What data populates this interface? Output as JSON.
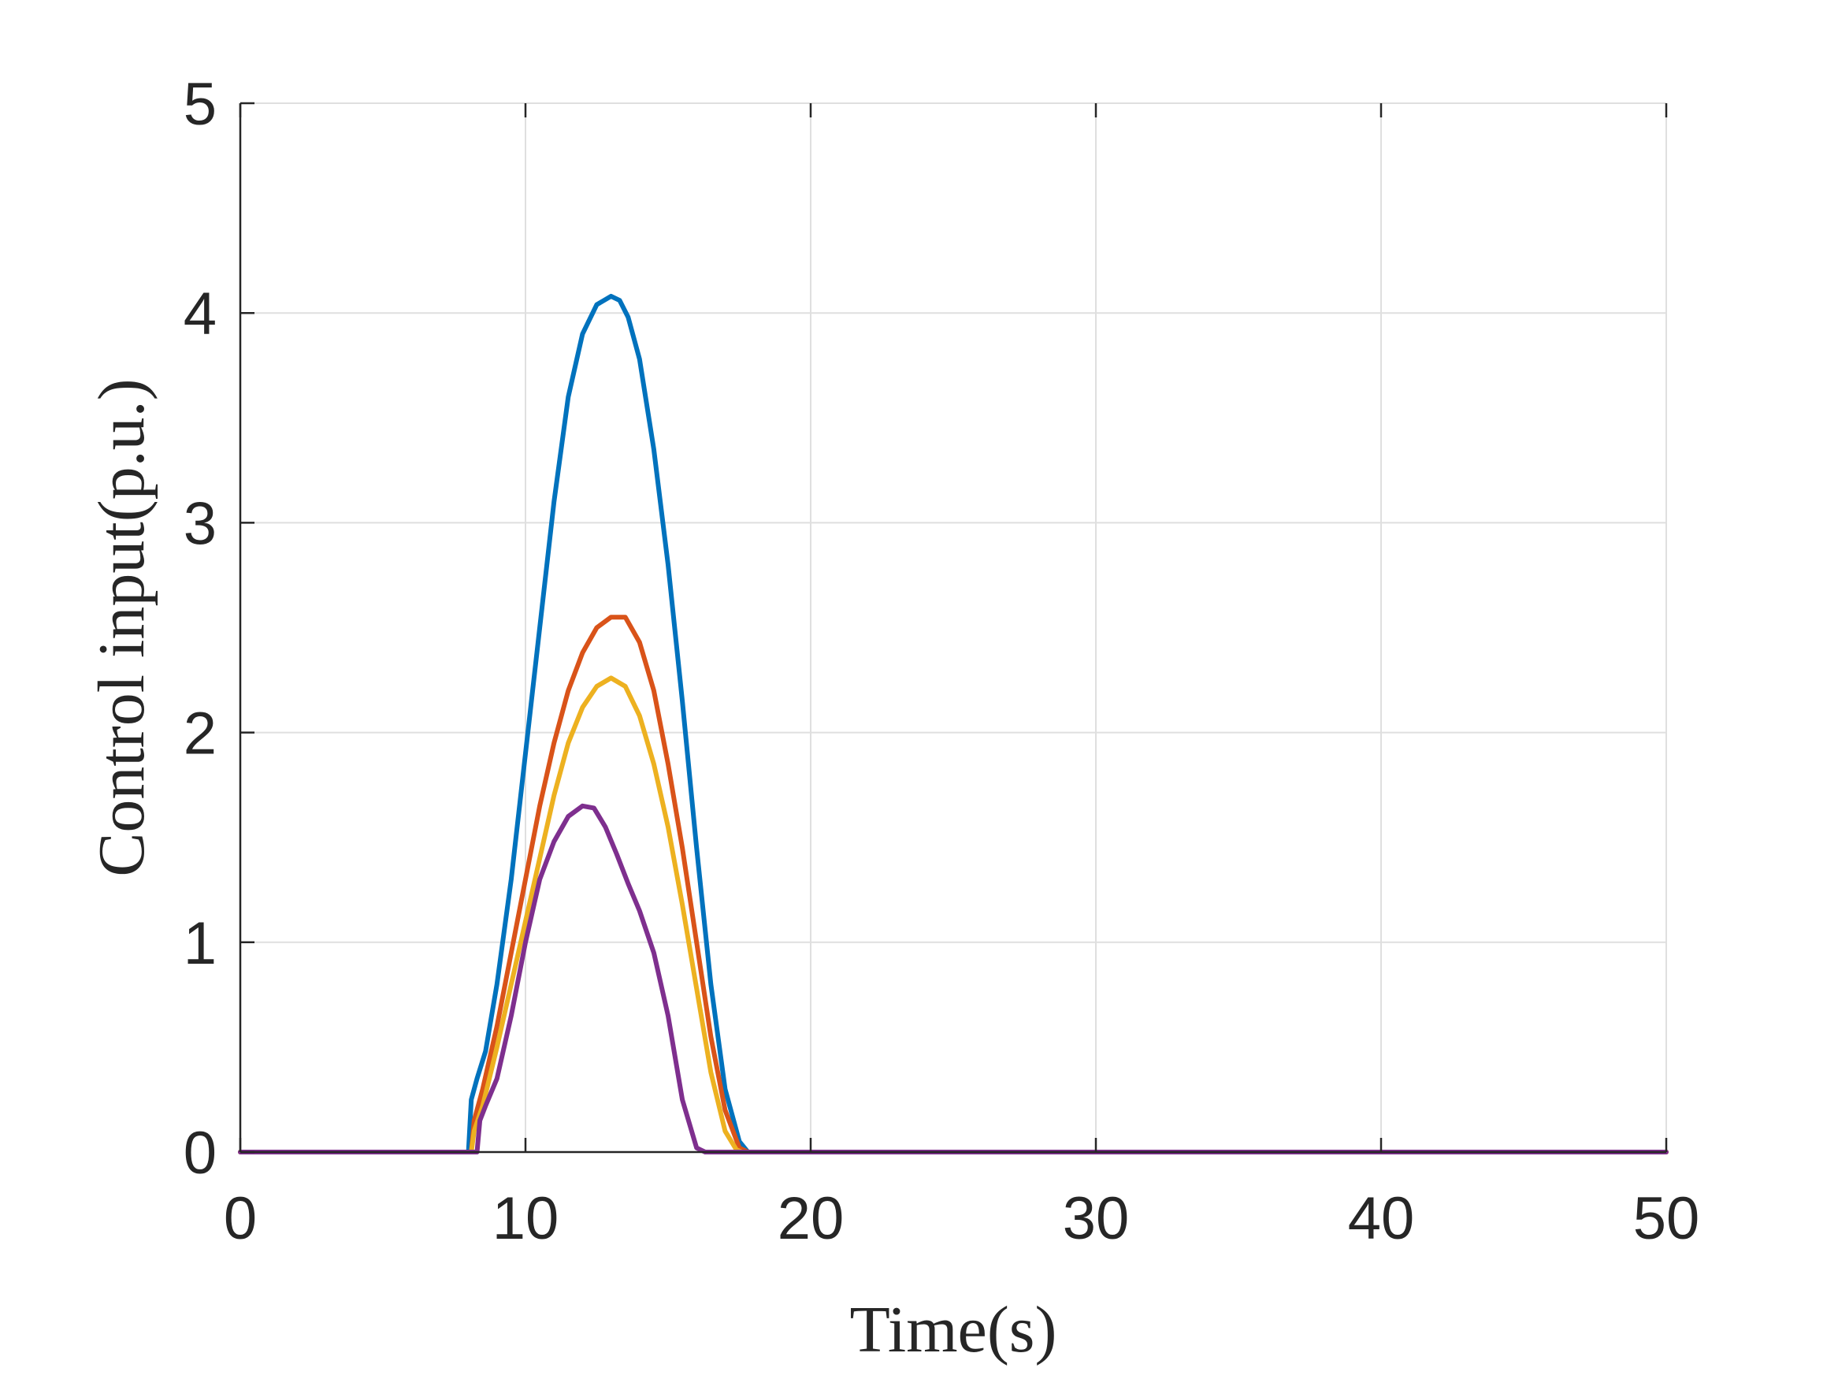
{
  "chart_data": {
    "type": "line",
    "title": "",
    "xlabel": "Time(s)",
    "ylabel": "Control input(p.u.)",
    "xlim": [
      0,
      50
    ],
    "ylim": [
      0,
      5
    ],
    "xticks": [
      0,
      10,
      20,
      30,
      40,
      50
    ],
    "yticks": [
      0,
      1,
      2,
      3,
      4,
      5
    ],
    "xtick_labels": [
      "0",
      "10",
      "20",
      "30",
      "40",
      "50"
    ],
    "ytick_labels": [
      "0",
      "1",
      "2",
      "3",
      "4",
      "5"
    ],
    "grid": true,
    "legend": "none",
    "series": [
      {
        "color": "#0072BD",
        "x": [
          0,
          8.0,
          8.1,
          8.3,
          8.6,
          9.0,
          9.5,
          10.0,
          10.5,
          11.0,
          11.5,
          12.0,
          12.5,
          13.0,
          13.3,
          13.6,
          14.0,
          14.5,
          15.0,
          15.5,
          16.0,
          16.5,
          17.0,
          17.5,
          17.8,
          18.0,
          50
        ],
        "y": [
          0,
          0,
          0.25,
          0.35,
          0.48,
          0.8,
          1.3,
          1.9,
          2.5,
          3.1,
          3.6,
          3.9,
          4.04,
          4.08,
          4.06,
          3.98,
          3.78,
          3.35,
          2.8,
          2.15,
          1.45,
          0.8,
          0.3,
          0.05,
          0,
          0,
          0
        ]
      },
      {
        "color": "#D95319",
        "x": [
          0,
          8.1,
          8.2,
          8.5,
          9.0,
          9.5,
          10.0,
          10.5,
          11.0,
          11.5,
          12.0,
          12.5,
          13.0,
          13.5,
          14.0,
          14.5,
          15.0,
          15.5,
          16.0,
          16.5,
          17.0,
          17.5,
          17.8,
          50
        ],
        "y": [
          0,
          0,
          0.15,
          0.3,
          0.6,
          0.95,
          1.3,
          1.65,
          1.95,
          2.2,
          2.38,
          2.5,
          2.55,
          2.55,
          2.43,
          2.2,
          1.85,
          1.45,
          1.0,
          0.55,
          0.2,
          0.02,
          0,
          0
        ]
      },
      {
        "color": "#EDB120",
        "x": [
          0,
          8.1,
          8.2,
          8.5,
          9.0,
          9.5,
          10.0,
          10.5,
          11.0,
          11.5,
          12.0,
          12.5,
          13.0,
          13.5,
          14.0,
          14.5,
          15.0,
          15.5,
          16.0,
          16.5,
          17.0,
          17.4,
          17.6,
          50
        ],
        "y": [
          0,
          0,
          0.1,
          0.22,
          0.5,
          0.8,
          1.1,
          1.4,
          1.7,
          1.95,
          2.12,
          2.22,
          2.26,
          2.22,
          2.08,
          1.85,
          1.55,
          1.18,
          0.78,
          0.38,
          0.1,
          0.01,
          0,
          0
        ]
      },
      {
        "color": "#7E2F8E",
        "x": [
          0,
          8.3,
          8.4,
          8.6,
          9.0,
          9.5,
          10.0,
          10.5,
          11.0,
          11.5,
          12.0,
          12.4,
          12.8,
          13.2,
          13.6,
          14.0,
          14.5,
          15.0,
          15.5,
          16.0,
          16.3,
          16.5,
          50
        ],
        "y": [
          0,
          0,
          0.15,
          0.22,
          0.35,
          0.65,
          1.0,
          1.3,
          1.48,
          1.6,
          1.65,
          1.64,
          1.55,
          1.42,
          1.28,
          1.15,
          0.95,
          0.65,
          0.25,
          0.02,
          0,
          0,
          0
        ]
      }
    ]
  }
}
